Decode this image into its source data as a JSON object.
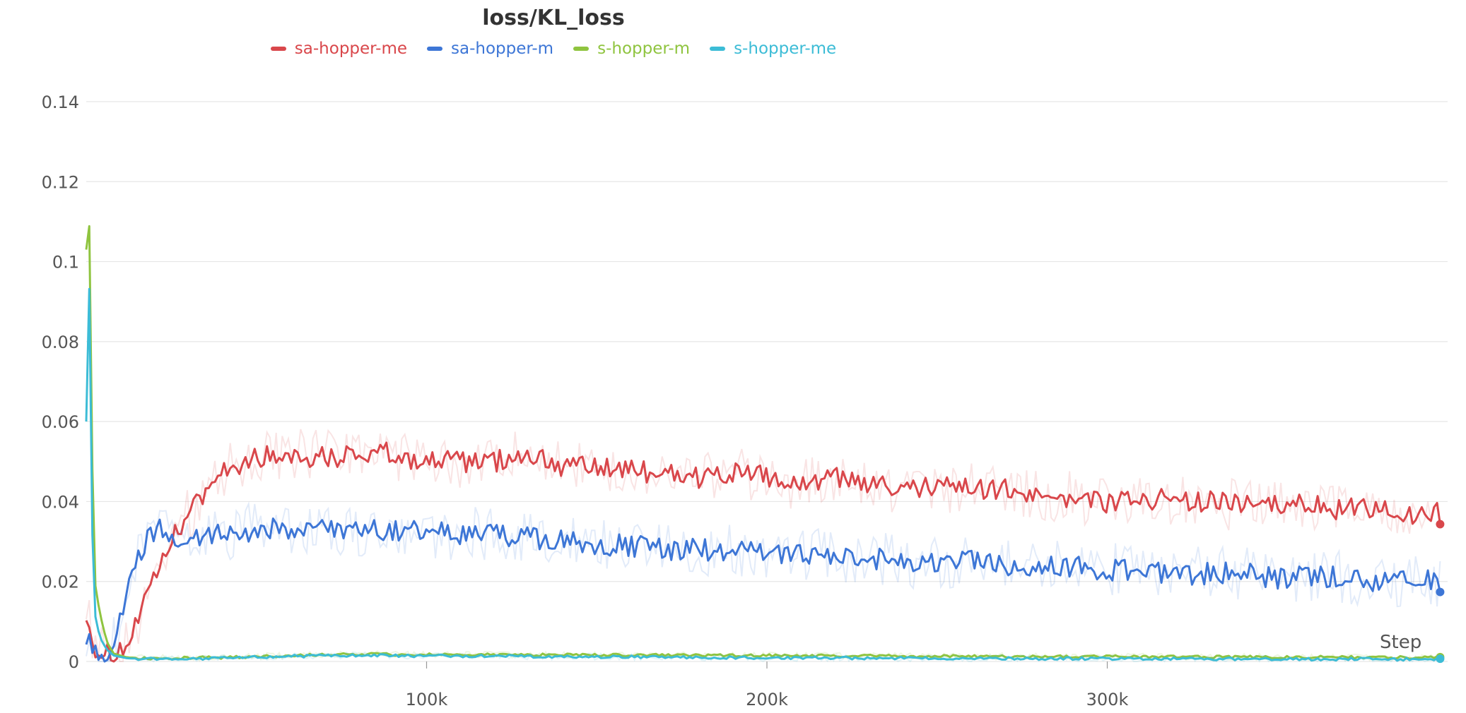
{
  "chart_data": {
    "type": "line",
    "title": "loss/KL_loss",
    "xlabel": "Step",
    "ylabel": "",
    "xlim": [
      0,
      400000
    ],
    "ylim": [
      0,
      0.14
    ],
    "x_ticks": [
      100000,
      200000,
      300000
    ],
    "x_tick_labels": [
      "100k",
      "200k",
      "300k"
    ],
    "y_ticks": [
      0,
      0.02,
      0.04,
      0.06,
      0.08,
      0.1,
      0.12,
      0.14
    ],
    "y_tick_labels": [
      "0",
      "0.02",
      "0.04",
      "0.06",
      "0.08",
      "0.1",
      "0.12",
      "0.14"
    ],
    "grid": true,
    "legend_position": "top-center",
    "series": [
      {
        "name": "sa-hopper-me",
        "color": "#d9474b",
        "x": [
          0,
          2000,
          5000,
          8000,
          12000,
          16000,
          20000,
          25000,
          30000,
          35000,
          40000,
          50000,
          60000,
          70000,
          80000,
          90000,
          100000,
          110000,
          120000,
          130000,
          140000,
          150000,
          160000,
          170000,
          180000,
          190000,
          200000,
          210000,
          220000,
          230000,
          240000,
          250000,
          260000,
          270000,
          280000,
          290000,
          300000,
          310000,
          320000,
          330000,
          340000,
          350000,
          360000,
          370000,
          380000,
          390000,
          398000
        ],
        "y": [
          0.013,
          0.004,
          0.002,
          0.002,
          0.004,
          0.012,
          0.02,
          0.03,
          0.037,
          0.042,
          0.048,
          0.051,
          0.052,
          0.051,
          0.052,
          0.052,
          0.05,
          0.05,
          0.05,
          0.052,
          0.049,
          0.048,
          0.048,
          0.047,
          0.046,
          0.047,
          0.046,
          0.044,
          0.046,
          0.044,
          0.043,
          0.044,
          0.043,
          0.043,
          0.042,
          0.041,
          0.04,
          0.041,
          0.04,
          0.04,
          0.039,
          0.039,
          0.039,
          0.038,
          0.038,
          0.037,
          0.037
        ]
      },
      {
        "name": "sa-hopper-m",
        "color": "#3d76d6",
        "x": [
          0,
          2000,
          4000,
          6000,
          9000,
          12000,
          15000,
          18000,
          22000,
          26000,
          30000,
          40000,
          50000,
          60000,
          70000,
          80000,
          90000,
          100000,
          110000,
          120000,
          130000,
          140000,
          150000,
          160000,
          170000,
          180000,
          190000,
          200000,
          210000,
          220000,
          230000,
          240000,
          250000,
          260000,
          270000,
          280000,
          290000,
          300000,
          310000,
          320000,
          330000,
          340000,
          350000,
          360000,
          370000,
          380000,
          390000,
          398000
        ],
        "y": [
          0.007,
          0.004,
          0.002,
          0.002,
          0.006,
          0.018,
          0.026,
          0.031,
          0.033,
          0.031,
          0.031,
          0.032,
          0.033,
          0.033,
          0.033,
          0.033,
          0.033,
          0.032,
          0.032,
          0.032,
          0.031,
          0.03,
          0.029,
          0.029,
          0.028,
          0.028,
          0.028,
          0.027,
          0.027,
          0.026,
          0.026,
          0.025,
          0.025,
          0.025,
          0.024,
          0.024,
          0.024,
          0.023,
          0.023,
          0.022,
          0.022,
          0.022,
          0.021,
          0.021,
          0.021,
          0.02,
          0.02,
          0.02
        ]
      },
      {
        "name": "s-hopper-m",
        "color": "#8fc43f",
        "x": [
          0,
          800,
          1500,
          2500,
          4000,
          6000,
          8000,
          12000,
          20000,
          40000,
          60000,
          80000,
          100000,
          150000,
          200000,
          250000,
          300000,
          350000,
          398000
        ],
        "y": [
          0.103,
          0.117,
          0.06,
          0.02,
          0.012,
          0.005,
          0.002,
          0.001,
          0.0008,
          0.001,
          0.0015,
          0.0018,
          0.0017,
          0.0016,
          0.0015,
          0.0013,
          0.0012,
          0.0011,
          0.001
        ]
      },
      {
        "name": "s-hopper-me",
        "color": "#3cbcd6",
        "x": [
          0,
          800,
          1500,
          2500,
          4000,
          6000,
          8000,
          12000,
          20000,
          40000,
          60000,
          80000,
          100000,
          150000,
          200000,
          250000,
          300000,
          350000,
          398000
        ],
        "y": [
          0.06,
          0.102,
          0.04,
          0.012,
          0.006,
          0.003,
          0.0015,
          0.0008,
          0.0006,
          0.0008,
          0.0013,
          0.0015,
          0.0014,
          0.0012,
          0.0009,
          0.0008,
          0.0007,
          0.0006,
          0.0005
        ]
      }
    ]
  }
}
